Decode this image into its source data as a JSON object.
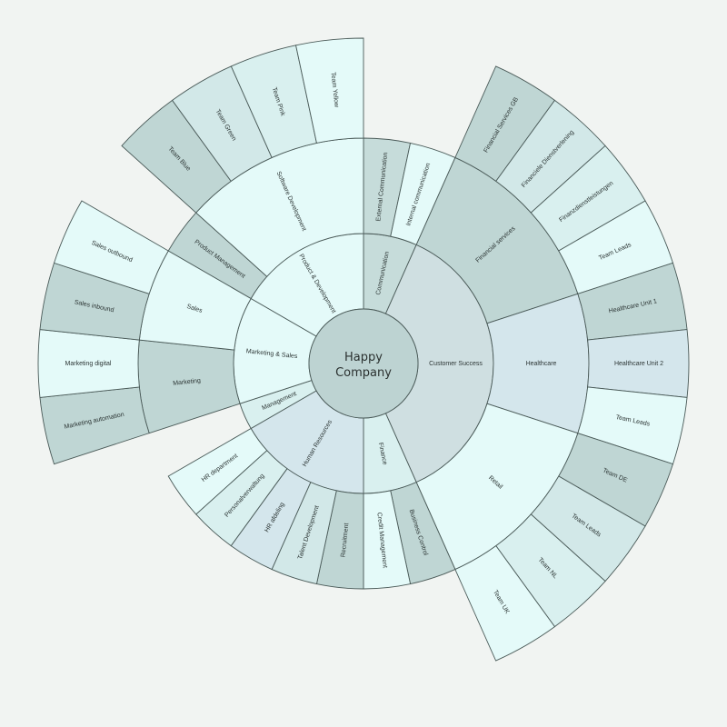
{
  "center": {
    "line1": "Happy",
    "line2": "Company"
  },
  "colors": {
    "background": "#f1f4f2",
    "center": "#bdd3d2",
    "stroke": "#4a5a58",
    "palette": {
      "light": "#e4faf9",
      "mint": "#d9f0ef",
      "pale": "#d2e8e8",
      "blue": "#d4e6ec",
      "mid": "#c6dcda",
      "dark": "#bfd6d4",
      "grey": "#cfdfe1"
    }
  },
  "groups": [
    {
      "label": "Communication",
      "color": "mid",
      "children": [
        {
          "label": "External Communication",
          "color": "mid",
          "children": []
        },
        {
          "label": "Internal communication",
          "color": "light",
          "children": []
        }
      ]
    },
    {
      "label": "Customer Success",
      "color": "grey",
      "children": [
        {
          "label": "Financial services",
          "color": "dark",
          "children": [
            {
              "label": "Financial Services GB",
              "color": "dark"
            },
            {
              "label": "Financiele Dienstverlening",
              "color": "pale"
            },
            {
              "label": "Finanzdienstleistungen",
              "color": "mint"
            },
            {
              "label": "Team Leads",
              "color": "light"
            }
          ]
        },
        {
          "label": "Healthcare",
          "color": "blue",
          "children": [
            {
              "label": "Healthcare Unit 1",
              "color": "dark"
            },
            {
              "label": "Healthcare Unit 2",
              "color": "blue"
            },
            {
              "label": "Team Leads",
              "color": "light"
            }
          ]
        },
        {
          "label": "Retail",
          "color": "light",
          "children": [
            {
              "label": "Team DE",
              "color": "dark"
            },
            {
              "label": "Team Leads",
              "color": "pale"
            },
            {
              "label": "Team NL",
              "color": "mint"
            },
            {
              "label": "Team UK",
              "color": "light"
            }
          ]
        }
      ]
    },
    {
      "label": "Finance",
      "color": "mint",
      "children": [
        {
          "label": "Business Control",
          "color": "dark",
          "children": []
        },
        {
          "label": "Credit Management",
          "color": "light",
          "children": []
        }
      ]
    },
    {
      "label": "Human Resources",
      "color": "blue",
      "children": [
        {
          "label": "Recruitment",
          "color": "dark",
          "children": []
        },
        {
          "label": "Talent Development",
          "color": "pale",
          "children": []
        },
        {
          "label": "HR afdeling",
          "color": "blue",
          "children": []
        },
        {
          "label": "Personalverwaltung",
          "color": "mint",
          "children": []
        },
        {
          "label": "HR department",
          "color": "light",
          "children": []
        }
      ]
    },
    {
      "label": "Management",
      "color": "mint",
      "children": []
    },
    {
      "label": "Marketing & Sales",
      "color": "light",
      "children": [
        {
          "label": "Marketing",
          "color": "dark",
          "children": [
            {
              "label": "Marketing automation",
              "color": "dark"
            },
            {
              "label": "Marketing digital",
              "color": "light"
            }
          ]
        },
        {
          "label": "Sales",
          "color": "light",
          "children": [
            {
              "label": "Sales inbound",
              "color": "dark"
            },
            {
              "label": "Sales outbound",
              "color": "light"
            }
          ]
        }
      ]
    },
    {
      "label": "Product & Development",
      "color": "light",
      "children": [
        {
          "label": "Product Management",
          "color": "dark",
          "children": []
        },
        {
          "label": "Software Development",
          "color": "light",
          "children": [
            {
              "label": "Team Blue",
              "color": "dark"
            },
            {
              "label": "Team Green",
              "color": "pale"
            },
            {
              "label": "Team Pink",
              "color": "mint"
            },
            {
              "label": "Team Yellow",
              "color": "light"
            }
          ]
        }
      ]
    }
  ]
}
